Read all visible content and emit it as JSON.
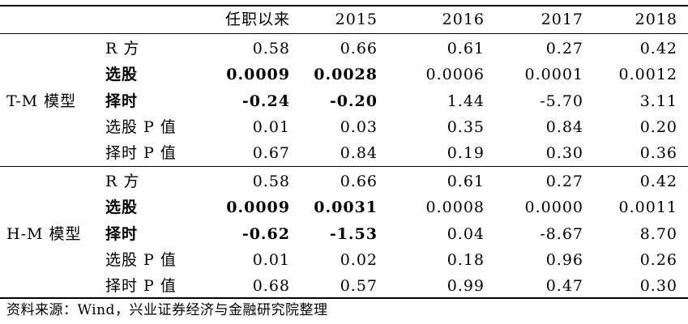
{
  "header": {
    "columns": [
      "任职以来",
      "2015",
      "2016",
      "2017",
      "2018"
    ]
  },
  "groups": [
    {
      "name": "T-M 模型",
      "rows": [
        {
          "label": "R 方",
          "bold": false,
          "values": [
            "0.58",
            "0.66",
            "0.61",
            "0.27",
            "0.42"
          ]
        },
        {
          "label": "选股",
          "bold": true,
          "values": [
            "0.0009",
            "0.0028",
            "0.0006",
            "0.0001",
            "0.0012"
          ]
        },
        {
          "label": "择时",
          "bold": true,
          "values": [
            "-0.24",
            "-0.20",
            "1.44",
            "-5.70",
            "3.11"
          ]
        },
        {
          "label": "选股 P 值",
          "bold": false,
          "values": [
            "0.01",
            "0.03",
            "0.35",
            "0.84",
            "0.20"
          ]
        },
        {
          "label": "择时 P 值",
          "bold": false,
          "values": [
            "0.67",
            "0.84",
            "0.19",
            "0.30",
            "0.36"
          ]
        }
      ]
    },
    {
      "name": "H-M 模型",
      "rows": [
        {
          "label": "R 方",
          "bold": false,
          "values": [
            "0.58",
            "0.66",
            "0.61",
            "0.27",
            "0.42"
          ]
        },
        {
          "label": "选股",
          "bold": true,
          "values": [
            "0.0009",
            "0.0031",
            "0.0008",
            "0.0000",
            "0.0011"
          ]
        },
        {
          "label": "择时",
          "bold": true,
          "values": [
            "-0.62",
            "-1.53",
            "0.04",
            "-8.67",
            "8.70"
          ]
        },
        {
          "label": "选股 P 值",
          "bold": false,
          "values": [
            "0.01",
            "0.02",
            "0.18",
            "0.96",
            "0.26"
          ]
        },
        {
          "label": "择时 P 值",
          "bold": false,
          "values": [
            "0.68",
            "0.57",
            "0.99",
            "0.47",
            "0.30"
          ]
        }
      ]
    }
  ],
  "bold_values_columns": [
    0,
    1
  ],
  "source": "资料来源：Wind，兴业证券经济与金融研究院整理"
}
